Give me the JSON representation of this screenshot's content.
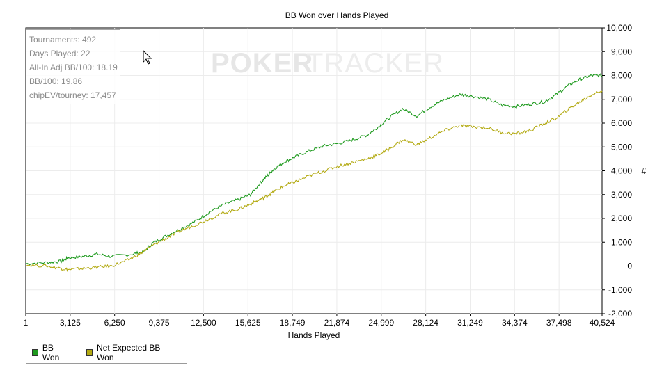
{
  "chart_data": {
    "type": "line",
    "title": "BB Won over Hands Played",
    "xlabel": "Hands Played",
    "ylabel": "#",
    "xlim": [
      1,
      40524
    ],
    "ylim": [
      -2000,
      10000
    ],
    "x_ticks": [
      "1",
      "3,125",
      "6,250",
      "9,375",
      "12,500",
      "15,625",
      "18,749",
      "21,874",
      "24,999",
      "28,124",
      "31,249",
      "34,374",
      "37,498",
      "40,524"
    ],
    "x_tick_values": [
      1,
      3125,
      6250,
      9375,
      12500,
      15625,
      18749,
      21874,
      24999,
      28124,
      31249,
      34374,
      37498,
      40524
    ],
    "y_ticks": [
      "-2,000",
      "-1,000",
      "0",
      "1,000",
      "2,000",
      "3,000",
      "4,000",
      "5,000",
      "6,000",
      "7,000",
      "8,000",
      "9,000",
      "10,000"
    ],
    "y_tick_values": [
      -2000,
      -1000,
      0,
      1000,
      2000,
      3000,
      4000,
      5000,
      6000,
      7000,
      8000,
      9000,
      10000
    ],
    "grid": true,
    "legend_position": "bottom-left",
    "series": [
      {
        "name": "BB Won",
        "color": "#1e9a1e",
        "x": [
          1,
          1500,
          2500,
          3000,
          4000,
          5000,
          6000,
          7500,
          8300,
          9000,
          10000,
          11000,
          12000,
          13000,
          14000,
          15000,
          15800,
          16500,
          17000,
          17500,
          18300,
          19000,
          20000,
          21000,
          22000,
          23000,
          24000,
          24700,
          25500,
          26500,
          27500,
          28500,
          29500,
          30500,
          31300,
          32500,
          33500,
          34500,
          35500,
          36500,
          37300,
          38200,
          39000,
          39800,
          40524
        ],
        "values": [
          100,
          150,
          200,
          350,
          400,
          500,
          400,
          500,
          600,
          1000,
          1300,
          1600,
          1900,
          2300,
          2600,
          2800,
          3000,
          3500,
          3800,
          4100,
          4400,
          4600,
          4850,
          5050,
          5150,
          5300,
          5500,
          5800,
          6200,
          6600,
          6300,
          6700,
          7000,
          7200,
          7150,
          7000,
          6750,
          6700,
          6800,
          6900,
          7200,
          7600,
          7850,
          8000,
          8000
        ]
      },
      {
        "name": "Net Expected BB Won",
        "color": "#b3aa12",
        "x": [
          1,
          1500,
          2500,
          3000,
          4000,
          5000,
          6000,
          7000,
          8000,
          9000,
          10000,
          11000,
          12000,
          13000,
          14000,
          15000,
          15800,
          16500,
          17000,
          17500,
          18300,
          19000,
          20000,
          21000,
          22000,
          23000,
          24000,
          24700,
          25500,
          26500,
          27500,
          28500,
          29500,
          30500,
          31300,
          32500,
          33500,
          34500,
          35500,
          36500,
          37300,
          38200,
          39000,
          39800,
          40524
        ],
        "values": [
          50,
          0,
          -100,
          -150,
          -100,
          -50,
          0,
          200,
          500,
          900,
          1200,
          1500,
          1750,
          2000,
          2250,
          2400,
          2600,
          2800,
          2950,
          3150,
          3400,
          3550,
          3800,
          4000,
          4200,
          4350,
          4500,
          4650,
          4900,
          5300,
          5100,
          5400,
          5700,
          5900,
          5850,
          5800,
          5600,
          5550,
          5700,
          6000,
          6200,
          6600,
          6900,
          7200,
          7350
        ]
      }
    ]
  },
  "watermark": {
    "part1": "POKER",
    "part2": "TRACKER"
  },
  "stats": [
    "Tournaments: 492",
    "Days Played: 22",
    "All-In Adj BB/100: 18.19",
    "BB/100: 19.86",
    "chipEV/tourney: 17,457"
  ]
}
